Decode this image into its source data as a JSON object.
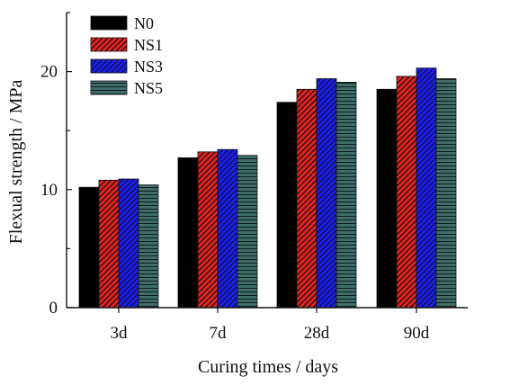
{
  "chart_data": {
    "type": "bar",
    "categories": [
      "3d",
      "7d",
      "28d",
      "90d"
    ],
    "series": [
      {
        "name": "N0",
        "values": [
          10.2,
          12.7,
          17.4,
          18.5
        ],
        "color": "#000000",
        "pattern": "solid"
      },
      {
        "name": "NS1",
        "values": [
          10.8,
          13.2,
          18.5,
          19.6
        ],
        "color": "#e8231f",
        "pattern": "diagonal"
      },
      {
        "name": "NS3",
        "values": [
          10.9,
          13.4,
          19.4,
          20.3
        ],
        "color": "#1c1cf0",
        "pattern": "diagonal-dense"
      },
      {
        "name": "NS5",
        "values": [
          10.4,
          12.9,
          19.1,
          19.4
        ],
        "color": "#3f6d68",
        "pattern": "horizontal"
      }
    ],
    "title": "",
    "xlabel": "Curing times / days",
    "ylabel": "Flexual strength / MPa",
    "ylim": [
      0,
      25
    ],
    "yticks": [
      "0",
      "10",
      "20"
    ],
    "grid": false,
    "legend_position": "top-left"
  }
}
